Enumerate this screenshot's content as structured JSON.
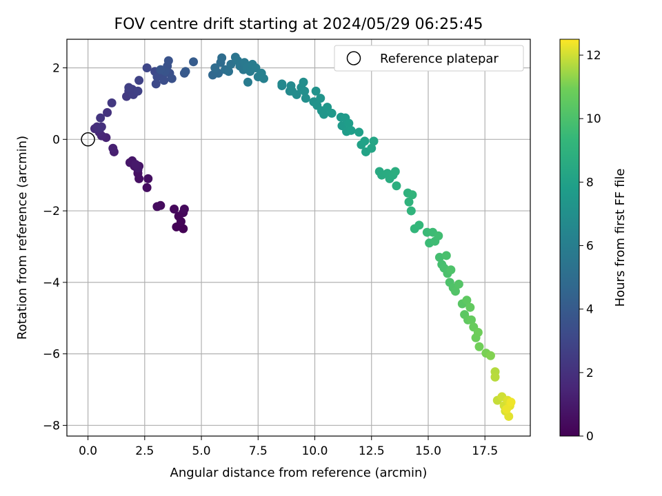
{
  "chart_data": {
    "type": "scatter",
    "title": "FOV centre drift starting at 2024/05/29 06:25:45",
    "xlabel": "Angular distance from reference (arcmin)",
    "ylabel": "Rotation from reference (arcmin)",
    "xlim": [
      -0.93,
      19.5
    ],
    "ylim": [
      -8.3,
      2.8
    ],
    "xticks": [
      0.0,
      2.5,
      5.0,
      7.5,
      10.0,
      12.5,
      15.0,
      17.5
    ],
    "xtick_labels": [
      "0.0",
      "2.5",
      "5.0",
      "7.5",
      "10.0",
      "12.5",
      "15.0",
      "17.5"
    ],
    "yticks": [
      2,
      0,
      -2,
      -4,
      -6,
      -8
    ],
    "ytick_labels": [
      "2",
      "0",
      "−2",
      "−4",
      "−6",
      "−8"
    ],
    "grid": true,
    "legend": {
      "placement": "upper right",
      "entries": [
        {
          "label": "Reference platepar",
          "marker": "open-circle"
        }
      ]
    },
    "reference_point": {
      "x": 0.0,
      "y": 0.0
    },
    "colorbar": {
      "label": "Hours from first FF file",
      "colormap": "viridis",
      "range": [
        0,
        12.5
      ],
      "ticks": [
        0,
        2,
        4,
        6,
        8,
        10,
        12
      ],
      "tick_labels": [
        "0",
        "2",
        "4",
        "6",
        "8",
        "10",
        "12"
      ]
    },
    "series": [
      {
        "points": [
          [
            4.2,
            -2.5,
            0.05
          ],
          [
            3.9,
            -2.45,
            0.1
          ],
          [
            4.1,
            -2.3,
            0.15
          ],
          [
            4.0,
            -2.15,
            0.2
          ],
          [
            4.2,
            -2.05,
            0.25
          ],
          [
            3.8,
            -1.95,
            0.3
          ],
          [
            4.25,
            -1.95,
            0.35
          ],
          [
            3.2,
            -1.85,
            0.4
          ],
          [
            3.05,
            -1.88,
            0.45
          ],
          [
            2.6,
            -1.35,
            0.5
          ],
          [
            2.65,
            -1.1,
            0.55
          ],
          [
            2.25,
            -1.1,
            0.6
          ],
          [
            2.2,
            -0.95,
            0.65
          ],
          [
            2.2,
            -0.85,
            0.7
          ],
          [
            2.25,
            -0.75,
            0.75
          ],
          [
            2.05,
            -0.75,
            0.8
          ],
          [
            1.95,
            -0.6,
            0.85
          ],
          [
            1.85,
            -0.65,
            0.9
          ],
          [
            2.2,
            -0.8,
            0.95
          ],
          [
            2.1,
            -0.7,
            1.0
          ],
          [
            1.15,
            -0.35,
            1.2
          ],
          [
            1.1,
            -0.25,
            1.3
          ],
          [
            0.8,
            0.05,
            1.4
          ],
          [
            0.6,
            0.1,
            1.5
          ],
          [
            0.5,
            0.2,
            1.6
          ],
          [
            0.3,
            0.3,
            1.7
          ],
          [
            0.5,
            0.3,
            1.8
          ],
          [
            0.4,
            0.35,
            1.9
          ],
          [
            0.6,
            0.35,
            2.0
          ],
          [
            0.85,
            0.75,
            2.1
          ],
          [
            0.55,
            0.6,
            2.2
          ],
          [
            1.05,
            1.02,
            2.3
          ],
          [
            1.7,
            1.2,
            2.4
          ],
          [
            1.8,
            1.35,
            2.5
          ],
          [
            2.05,
            1.3,
            2.55
          ],
          [
            1.95,
            1.4,
            2.6
          ],
          [
            2.0,
            1.25,
            2.65
          ],
          [
            1.8,
            1.45,
            2.7
          ],
          [
            2.2,
            1.35,
            2.75
          ],
          [
            2.25,
            1.65,
            2.8
          ],
          [
            2.6,
            2.0,
            3.0
          ],
          [
            2.95,
            1.9,
            3.1
          ],
          [
            3.0,
            1.55,
            3.2
          ],
          [
            3.05,
            1.75,
            3.3
          ],
          [
            3.3,
            1.8,
            3.35
          ],
          [
            3.35,
            1.65,
            3.4
          ],
          [
            3.45,
            1.95,
            3.45
          ],
          [
            3.6,
            1.85,
            3.5
          ],
          [
            3.7,
            1.7,
            3.55
          ],
          [
            3.5,
            2.05,
            3.6
          ],
          [
            3.55,
            2.2,
            3.65
          ],
          [
            3.4,
            1.9,
            3.7
          ],
          [
            3.2,
            1.95,
            3.75
          ],
          [
            4.25,
            1.85,
            3.9
          ],
          [
            4.3,
            1.9,
            4.0
          ],
          [
            4.65,
            2.17,
            4.1
          ],
          [
            5.5,
            1.8,
            4.7
          ],
          [
            5.75,
            1.85,
            4.8
          ],
          [
            5.6,
            2.0,
            4.9
          ],
          [
            5.85,
            2.15,
            4.95
          ],
          [
            5.9,
            2.28,
            5.0
          ],
          [
            6.05,
            1.95,
            5.1
          ],
          [
            6.2,
            1.9,
            5.2
          ],
          [
            6.3,
            2.1,
            5.3
          ],
          [
            6.5,
            2.3,
            5.4
          ],
          [
            6.6,
            2.2,
            5.5
          ],
          [
            6.7,
            2.05,
            5.55
          ],
          [
            6.85,
            1.95,
            5.6
          ],
          [
            6.9,
            2.15,
            5.7
          ],
          [
            7.0,
            2.0,
            5.75
          ],
          [
            7.05,
            1.6,
            5.8
          ],
          [
            7.15,
            1.9,
            5.85
          ],
          [
            7.25,
            2.1,
            5.9
          ],
          [
            7.4,
            2.0,
            5.95
          ],
          [
            7.5,
            1.75,
            6.0
          ],
          [
            7.6,
            1.8,
            6.05
          ],
          [
            7.65,
            1.85,
            6.1
          ],
          [
            7.75,
            1.7,
            6.15
          ],
          [
            8.55,
            1.5,
            6.5
          ],
          [
            8.55,
            1.55,
            6.6
          ],
          [
            8.9,
            1.35,
            6.65
          ],
          [
            8.95,
            1.5,
            6.7
          ],
          [
            9.0,
            1.35,
            6.75
          ],
          [
            9.2,
            1.25,
            6.8
          ],
          [
            9.4,
            1.45,
            6.85
          ],
          [
            9.5,
            1.6,
            6.9
          ],
          [
            9.55,
            1.35,
            6.95
          ],
          [
            9.6,
            1.15,
            7.0
          ],
          [
            9.95,
            1.05,
            7.1
          ],
          [
            10.05,
            1.35,
            7.15
          ],
          [
            10.1,
            0.95,
            7.2
          ],
          [
            10.25,
            1.15,
            7.25
          ],
          [
            10.3,
            0.8,
            7.3
          ],
          [
            10.4,
            0.7,
            7.35
          ],
          [
            10.55,
            0.9,
            7.4
          ],
          [
            10.75,
            0.73,
            7.45
          ],
          [
            11.15,
            0.62,
            7.55
          ],
          [
            11.2,
            0.38,
            7.6
          ],
          [
            11.35,
            0.6,
            7.65
          ],
          [
            11.4,
            0.22,
            7.7
          ],
          [
            11.5,
            0.45,
            7.75
          ],
          [
            11.6,
            0.25,
            7.8
          ],
          [
            11.95,
            0.2,
            7.9
          ],
          [
            12.05,
            -0.15,
            8.0
          ],
          [
            12.2,
            -0.05,
            8.05
          ],
          [
            12.25,
            -0.35,
            8.1
          ],
          [
            12.5,
            -0.25,
            8.2
          ],
          [
            12.6,
            -0.05,
            8.25
          ],
          [
            12.85,
            -0.9,
            8.5
          ],
          [
            12.95,
            -1.0,
            8.55
          ],
          [
            13.2,
            -0.95,
            8.6
          ],
          [
            13.3,
            -1.1,
            8.65
          ],
          [
            13.45,
            -1.0,
            8.7
          ],
          [
            13.55,
            -0.9,
            8.75
          ],
          [
            13.6,
            -1.3,
            8.8
          ],
          [
            14.1,
            -1.5,
            9.0
          ],
          [
            14.15,
            -1.75,
            9.05
          ],
          [
            14.25,
            -2.0,
            9.1
          ],
          [
            14.3,
            -1.55,
            9.15
          ],
          [
            14.4,
            -2.5,
            9.25
          ],
          [
            14.6,
            -2.4,
            9.3
          ],
          [
            14.95,
            -2.6,
            9.5
          ],
          [
            15.05,
            -2.9,
            9.55
          ],
          [
            15.2,
            -2.6,
            9.6
          ],
          [
            15.3,
            -2.85,
            9.65
          ],
          [
            15.45,
            -2.7,
            9.7
          ],
          [
            15.5,
            -3.3,
            9.8
          ],
          [
            15.6,
            -3.5,
            9.85
          ],
          [
            15.7,
            -3.6,
            9.9
          ],
          [
            15.8,
            -3.25,
            9.95
          ],
          [
            15.85,
            -3.75,
            10.0
          ],
          [
            15.95,
            -4.0,
            10.05
          ],
          [
            16.0,
            -3.65,
            10.1
          ],
          [
            16.1,
            -4.15,
            10.15
          ],
          [
            16.2,
            -4.25,
            10.2
          ],
          [
            16.35,
            -4.05,
            10.25
          ],
          [
            16.5,
            -4.6,
            10.35
          ],
          [
            16.6,
            -4.9,
            10.45
          ],
          [
            16.7,
            -4.5,
            10.5
          ],
          [
            16.75,
            -5.05,
            10.55
          ],
          [
            16.85,
            -4.7,
            10.6
          ],
          [
            16.9,
            -5.05,
            10.65
          ],
          [
            17.0,
            -5.25,
            10.75
          ],
          [
            17.1,
            -5.55,
            10.85
          ],
          [
            17.2,
            -5.4,
            10.9
          ],
          [
            17.25,
            -5.8,
            10.95
          ],
          [
            17.55,
            -5.98,
            11.05
          ],
          [
            17.75,
            -6.05,
            11.15
          ],
          [
            17.95,
            -6.5,
            11.7
          ],
          [
            17.95,
            -6.65,
            11.75
          ],
          [
            18.05,
            -7.3,
            11.9
          ],
          [
            18.25,
            -7.2,
            12.0
          ],
          [
            18.35,
            -7.45,
            12.05
          ],
          [
            18.4,
            -7.6,
            12.1
          ],
          [
            18.5,
            -7.3,
            12.15
          ],
          [
            18.55,
            -7.75,
            12.2
          ],
          [
            18.6,
            -7.45,
            12.25
          ],
          [
            18.45,
            -7.55,
            12.3
          ],
          [
            18.65,
            -7.35,
            12.35
          ]
        ]
      }
    ]
  }
}
